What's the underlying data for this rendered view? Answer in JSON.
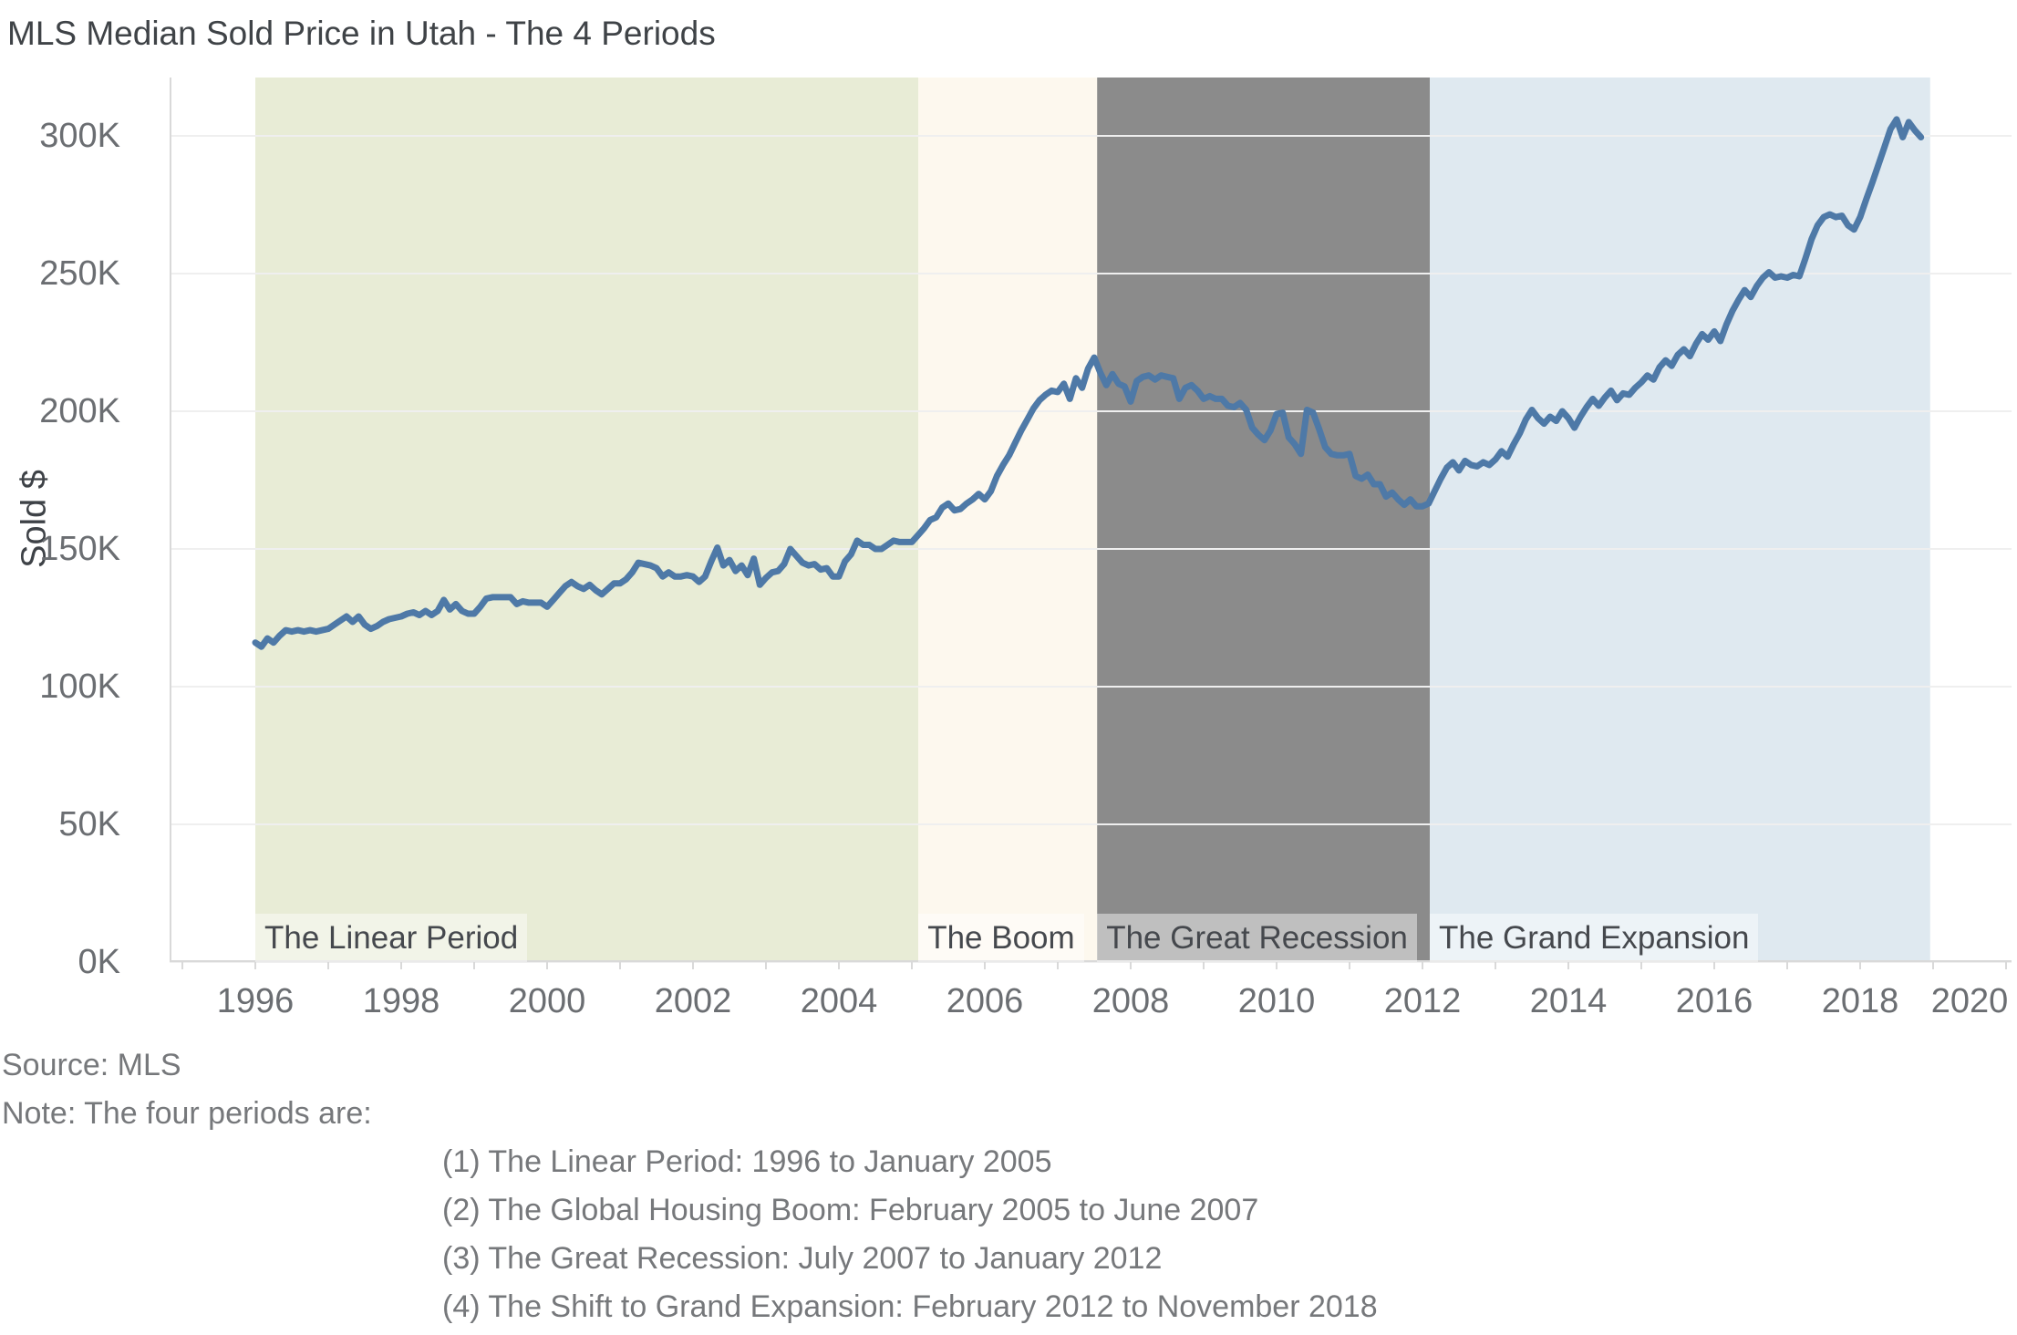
{
  "title": "MLS Median Sold Price in Utah - The 4 Periods",
  "y_axis": {
    "title": "Sold $",
    "tick_labels": [
      "0K",
      "50K",
      "100K",
      "150K",
      "200K",
      "250K",
      "300K"
    ],
    "tick_values": [
      0,
      50,
      100,
      150,
      200,
      250,
      300
    ]
  },
  "x_axis": {
    "tick_years": [
      1996,
      1998,
      2000,
      2002,
      2004,
      2006,
      2008,
      2010,
      2012,
      2014,
      2016,
      2018,
      2020
    ],
    "minor_tick_start": 1995,
    "minor_tick_end": 2020
  },
  "periods": [
    {
      "label": "The Linear Period",
      "start": 1996.0,
      "end": 2005.09,
      "color": "#e8ecd6"
    },
    {
      "label": "The Boom",
      "start": 2005.09,
      "end": 2007.54,
      "color": "#fdf8ee"
    },
    {
      "label": "The Great Recession",
      "start": 2007.54,
      "end": 2012.1,
      "color": "#8b8b8b"
    },
    {
      "label": "The Grand Expansion",
      "start": 2012.1,
      "end": 2018.96,
      "color": "#dfe9f0"
    }
  ],
  "notes": {
    "source": "Source: MLS",
    "intro": "Note: The four periods are:",
    "items": [
      "(1) The Linear Period: 1996 to January 2005",
      "(2) The Global Housing Boom: February 2005 to June 2007",
      "(3) The Great Recession: July 2007 to January 2012",
      "(4) The Shift to Grand Expansion: February 2012 to November 2018"
    ]
  },
  "colors": {
    "line": "#4e79a7",
    "gridline": "#efefef",
    "axis_line": "#d9d9d9",
    "tick_label": "#6b6e72",
    "period_label_text": "#45484d",
    "period_label_bg": "rgba(255,255,255,0.45)",
    "note_text": "#76787b"
  },
  "chart_data": {
    "type": "line",
    "title": "MLS Median Sold Price in Utah - The 4 Periods",
    "series_name": "MLS Median Sold Price",
    "xlabel": "",
    "ylabel": "Sold $",
    "y_unit": "USD thousands",
    "x_start_year": 1996.0,
    "x_interval": "monthly",
    "x_end_label": "November 2018",
    "x_axis_range_years": [
      1994.825,
      2020.1
    ],
    "ylim": [
      0,
      321
    ],
    "grid": "horizontal",
    "legend_position": "none",
    "values": [
      116,
      114.5,
      117.5,
      116,
      118.5,
      120.5,
      120,
      120.5,
      120,
      120.5,
      120,
      120.5,
      121,
      122.5,
      124,
      125.5,
      123.5,
      125.5,
      122.5,
      121,
      122,
      123.5,
      124.5,
      125,
      125.5,
      126.5,
      127,
      126,
      127.5,
      126,
      127.5,
      131.5,
      128,
      130,
      127.5,
      126.5,
      126.5,
      129,
      132,
      132.5,
      132.5,
      132.5,
      132.5,
      130,
      131,
      130.5,
      130.5,
      130.5,
      129,
      131.5,
      134,
      136.5,
      138,
      136.5,
      135.5,
      137,
      135,
      133.5,
      135.5,
      137.5,
      137.5,
      139,
      141.5,
      145,
      144.5,
      144,
      143,
      140,
      141.5,
      140,
      140,
      140.5,
      140,
      138,
      140,
      145.5,
      150.5,
      144,
      146,
      142,
      144,
      140.5,
      146.5,
      137,
      139.5,
      141.5,
      142,
      144.5,
      150,
      147.5,
      145,
      144,
      144.5,
      142.5,
      143,
      140,
      140,
      145.5,
      148,
      153,
      151.5,
      151.5,
      150,
      150,
      151.5,
      153,
      152.5,
      152.5,
      152.5,
      155,
      157.5,
      160.5,
      161.5,
      165,
      166.5,
      164,
      164.5,
      166.5,
      168,
      170,
      168,
      171,
      176.5,
      180.5,
      184,
      188.5,
      193,
      197,
      201,
      204,
      206,
      207.5,
      207,
      210,
      204.5,
      212,
      208.5,
      215.5,
      219.5,
      214,
      209.5,
      213.5,
      210,
      209,
      203.5,
      211,
      212.5,
      213,
      211.5,
      213,
      212.5,
      212,
      204.5,
      208.5,
      209.5,
      207.5,
      204.5,
      205.5,
      204.5,
      204.5,
      202,
      201.5,
      203,
      200.5,
      194,
      191.5,
      189.5,
      193,
      199,
      199.5,
      190.5,
      188,
      184.5,
      200.5,
      199.5,
      193.5,
      187,
      184.5,
      184,
      184,
      184.5,
      176.5,
      175.5,
      177,
      173.5,
      173.5,
      169,
      170.5,
      168,
      166,
      168,
      165.5,
      165.5,
      166.5,
      171,
      175.5,
      179.5,
      181.5,
      178.5,
      182,
      180.5,
      180,
      181.5,
      180.5,
      182.5,
      185.5,
      183.5,
      188,
      192,
      197,
      200.5,
      197.5,
      195.5,
      198,
      196.5,
      200,
      197.5,
      194,
      198,
      201.5,
      204.5,
      202,
      205,
      207.5,
      204,
      206.5,
      206,
      208.5,
      210.5,
      213,
      211.5,
      216,
      218.5,
      216.5,
      220.5,
      222.5,
      220,
      224.5,
      228,
      226,
      229,
      225.5,
      231.5,
      236.5,
      240.5,
      244,
      241.5,
      245.5,
      248.5,
      250.5,
      248.5,
      249,
      248.5,
      249.5,
      249,
      255.5,
      262.5,
      267.5,
      270.5,
      271.5,
      270.5,
      271,
      267.5,
      266,
      270.5,
      277,
      283,
      289.5,
      296,
      302.5,
      306,
      299.5,
      305,
      302,
      299.5
    ]
  }
}
